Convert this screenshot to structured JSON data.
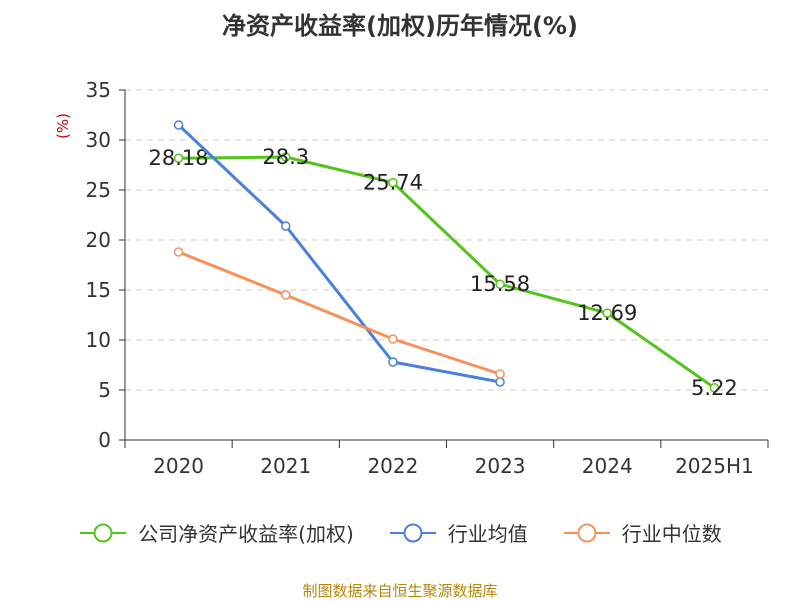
{
  "chart_data": {
    "type": "line",
    "title": "净资产收益率(加权)历年情况(%)",
    "ylabel": "(%)",
    "xlabel": "",
    "categories": [
      "2020",
      "2021",
      "2022",
      "2023",
      "2024",
      "2025H1"
    ],
    "ylim": [
      0,
      35
    ],
    "yticks": [
      0,
      5,
      10,
      15,
      20,
      25,
      30,
      35
    ],
    "grid": true,
    "legend_position": "bottom",
    "series": [
      {
        "name": "公司净资产收益率(加权)",
        "color": "#52c41a",
        "values": [
          28.18,
          28.3,
          25.74,
          15.58,
          12.69,
          5.22
        ],
        "show_labels": true
      },
      {
        "name": "行业均值",
        "color": "#4a7fdc",
        "values": [
          31.5,
          21.4,
          7.8,
          5.8,
          null,
          null
        ],
        "show_labels": false
      },
      {
        "name": "行业中位数",
        "color": "#f4925a",
        "values": [
          18.8,
          14.5,
          10.1,
          6.6,
          null,
          null
        ],
        "show_labels": false
      }
    ],
    "source": "制图数据来自恒生聚源数据库"
  }
}
